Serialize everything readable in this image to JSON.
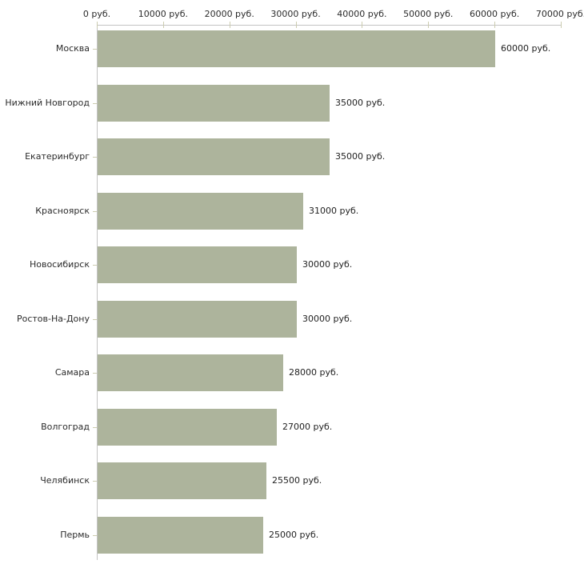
{
  "chart_data": {
    "type": "bar",
    "orientation": "horizontal",
    "title": "",
    "xlabel": "",
    "ylabel": "",
    "grid": false,
    "legend": false,
    "xlim": [
      0,
      70000
    ],
    "x_axis": {
      "tick_values": [
        0,
        10000,
        20000,
        30000,
        40000,
        50000,
        60000,
        70000
      ],
      "tick_labels": [
        "0 руб.",
        "10000 руб.",
        "20000 руб.",
        "30000 руб.",
        "40000 руб.",
        "50000 руб.",
        "60000 руб.",
        "70000 руб."
      ],
      "position": "top"
    },
    "categories": [
      "Москва",
      "Нижний Новгород",
      "Екатеринбург",
      "Красноярск",
      "Новосибирск",
      "Ростов-На-Дону",
      "Самара",
      "Волгоград",
      "Челябинск",
      "Пермь"
    ],
    "values": [
      60000,
      35000,
      35000,
      31000,
      30000,
      30000,
      28000,
      27000,
      25500,
      25000
    ],
    "value_labels": [
      "60000 руб.",
      "35000 руб.",
      "35000 руб.",
      "31000 руб.",
      "30000 руб.",
      "30000 руб.",
      "28000 руб.",
      "27000 руб.",
      "25500 руб.",
      "25000 руб."
    ],
    "colors": {
      "bar": "#adb49c",
      "axis_line": "#c3c3c3",
      "tick_mark": "#ccccb0",
      "label_text": "#2b2b2b"
    }
  }
}
